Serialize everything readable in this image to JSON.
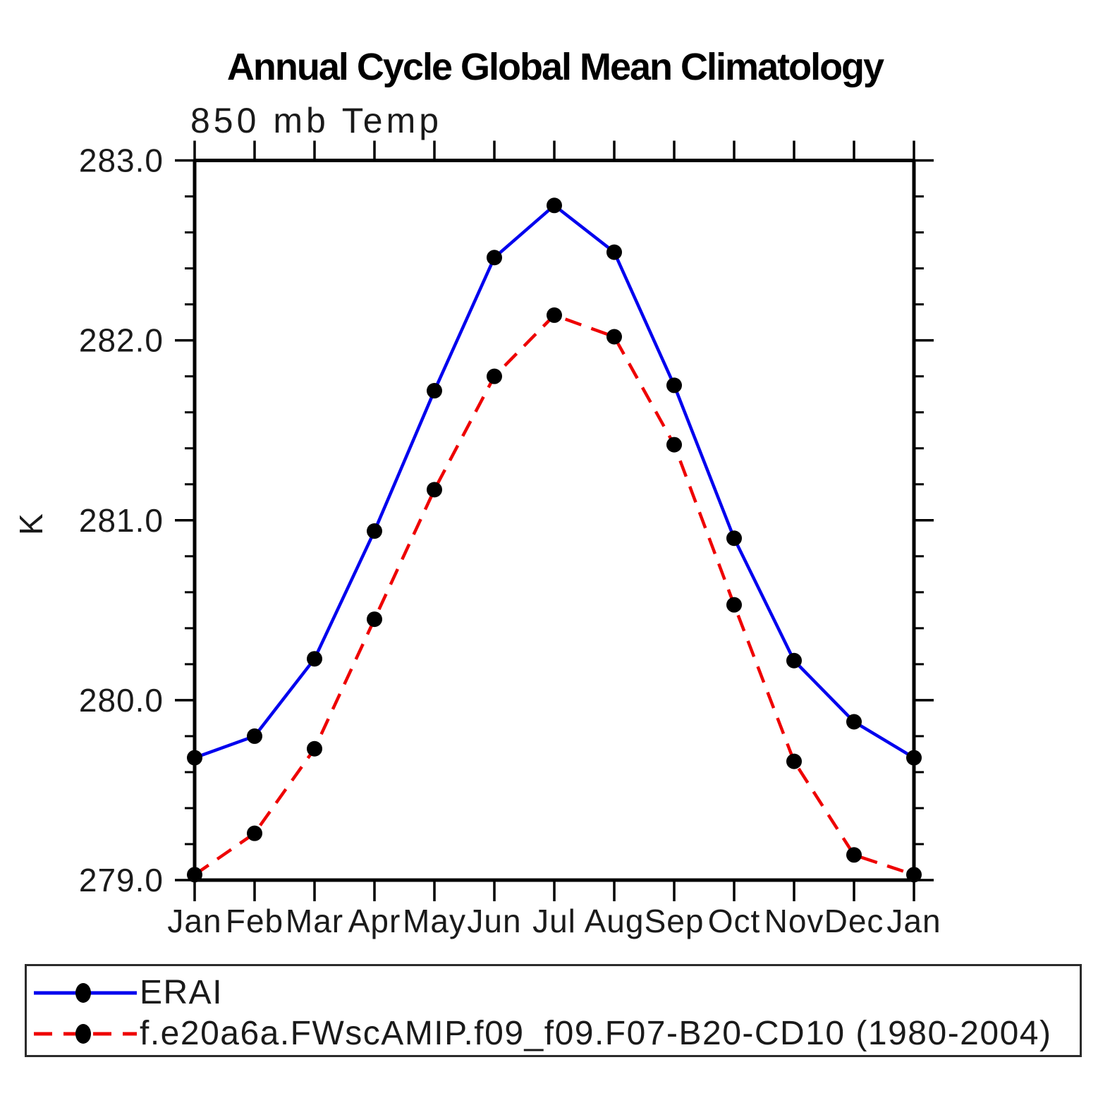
{
  "chart_data": {
    "type": "line",
    "title": "Annual Cycle Global Mean Climatology",
    "subtitle": "850 mb Temp",
    "ylabel": "K",
    "xlabel": "",
    "categories": [
      "Jan",
      "Feb",
      "Mar",
      "Apr",
      "May",
      "Jun",
      "Jul",
      "Aug",
      "Sep",
      "Oct",
      "Nov",
      "Dec",
      "Jan"
    ],
    "ylim": [
      279.0,
      283.0
    ],
    "ytick_major_step": 1.0,
    "ytick_minor_step": 0.2,
    "ytick_labels": [
      "279.0",
      "280.0",
      "281.0",
      "282.0",
      "283.0"
    ],
    "grid": false,
    "legend_position": "bottom-left-box",
    "series": [
      {
        "name": "ERAI",
        "color": "#0000ee",
        "line_style": "solid",
        "marker": "filled-circle",
        "marker_color": "#000000",
        "values": [
          279.68,
          279.8,
          280.23,
          280.94,
          281.72,
          282.46,
          282.75,
          282.49,
          281.75,
          280.9,
          280.22,
          279.88,
          279.68
        ]
      },
      {
        "name": "f.e20a6a.FWscAMIP.f09_f09.F07-B20-CD10 (1980-2004)",
        "color": "#ee0000",
        "line_style": "dashed",
        "marker": "filled-circle",
        "marker_color": "#000000",
        "values": [
          279.03,
          279.26,
          279.73,
          280.45,
          281.17,
          281.8,
          282.14,
          282.02,
          281.42,
          280.53,
          279.66,
          279.14,
          279.03
        ]
      }
    ]
  }
}
